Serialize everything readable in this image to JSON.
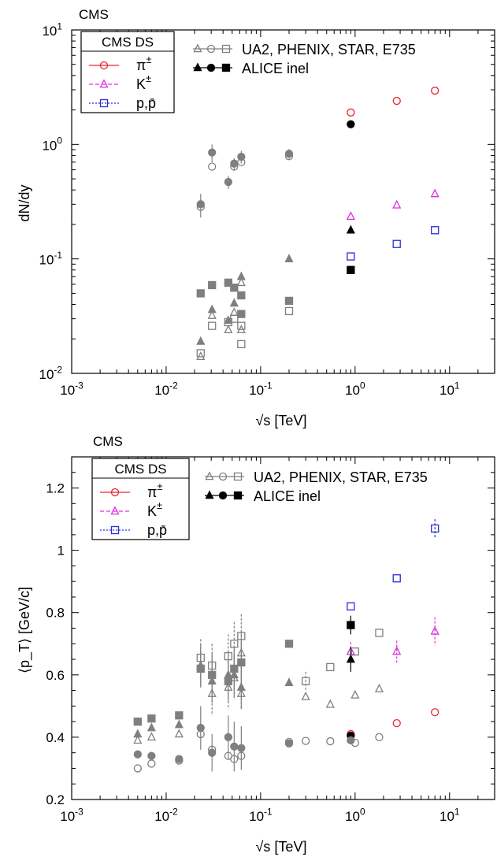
{
  "colors": {
    "pion": "#e8262d",
    "kaon": "#e02ee0",
    "proton": "#2a2adf",
    "other_exp": "#7f7f7f",
    "alice": "#000000"
  },
  "chart_data": [
    {
      "type": "scatter",
      "panel_label": "CMS",
      "xlabel": "√s [TeV]",
      "ylabel": "dN/dy",
      "xscale": "log",
      "yscale": "log",
      "xlim": [
        0.001,
        30
      ],
      "ylim": [
        0.01,
        10
      ],
      "x_ticks": [
        {
          "value": 0.001,
          "base": "10",
          "exp": "-3"
        },
        {
          "value": 0.01,
          "base": "10",
          "exp": "-2"
        },
        {
          "value": 0.1,
          "base": "10",
          "exp": "-1"
        },
        {
          "value": 1,
          "base": "10",
          "exp": "0"
        },
        {
          "value": 10,
          "base": "10",
          "exp": "1"
        }
      ],
      "y_ticks": [
        {
          "value": 0.01,
          "base": "10",
          "exp": "-2"
        },
        {
          "value": 0.1,
          "base": "10",
          "exp": "-1"
        },
        {
          "value": 1,
          "base": "10",
          "exp": "0"
        },
        {
          "value": 10,
          "base": "10",
          "exp": "1"
        }
      ],
      "legend": {
        "placement": "top-left",
        "title": "CMS DS",
        "entries": [
          {
            "label": "π",
            "sup": "±",
            "color": "pion",
            "marker": "circle",
            "dash": "solid"
          },
          {
            "label": "K",
            "sup": "±",
            "color": "kaon",
            "marker": "triangle",
            "dash": "dashed"
          },
          {
            "label": "p,p̄",
            "sup": "",
            "color": "proton",
            "marker": "square",
            "dash": "dotted"
          }
        ],
        "other_entries": [
          {
            "label": "UA2, PHENIX, STAR, E735",
            "style": "open"
          },
          {
            "label": "ALICE inel",
            "style": "filled"
          }
        ]
      },
      "series": [
        {
          "name": "π±",
          "color": "pion",
          "marker": "circle",
          "fill": "open",
          "points": [
            {
              "x": 0.9,
              "y": 1.9
            },
            {
              "x": 2.76,
              "y": 2.4
            },
            {
              "x": 7,
              "y": 2.95
            }
          ]
        },
        {
          "name": "K±",
          "color": "kaon",
          "marker": "triangle",
          "fill": "open",
          "points": [
            {
              "x": 0.9,
              "y": 0.235
            },
            {
              "x": 2.76,
              "y": 0.295
            },
            {
              "x": 7,
              "y": 0.37
            }
          ]
        },
        {
          "name": "p,p̄",
          "color": "proton",
          "marker": "square",
          "fill": "open",
          "points": [
            {
              "x": 0.9,
              "y": 0.105
            },
            {
              "x": 2.76,
              "y": 0.135
            },
            {
              "x": 7,
              "y": 0.178
            }
          ]
        },
        {
          "name": "ALICE inel",
          "color": "alice",
          "marker": "circle",
          "fill": "filled",
          "points": [
            {
              "x": 0.9,
              "y": 1.5
            }
          ]
        },
        {
          "name": "ALICE inel",
          "color": "alice",
          "marker": "triangle",
          "fill": "filled",
          "points": [
            {
              "x": 0.9,
              "y": 0.178
            }
          ]
        },
        {
          "name": "ALICE inel",
          "color": "alice",
          "marker": "square",
          "fill": "filled",
          "points": [
            {
              "x": 0.9,
              "y": 0.08
            }
          ]
        },
        {
          "name": "UA2, PHENIX, STAR, E735",
          "color": "other_exp",
          "marker": "circle",
          "fill": "filled",
          "points": [
            {
              "x": 0.0232,
              "y": 0.3,
              "err": 0.07
            },
            {
              "x": 0.0306,
              "y": 0.85,
              "err": 0.15
            },
            {
              "x": 0.0455,
              "y": 0.47,
              "err": 0.06
            },
            {
              "x": 0.0525,
              "y": 0.68,
              "err": 0.08
            },
            {
              "x": 0.0624,
              "y": 0.78,
              "err": 0.1
            },
            {
              "x": 0.2,
              "y": 0.83,
              "err": 0.08
            }
          ]
        },
        {
          "name": "UA2, PHENIX, STAR, E735",
          "color": "other_exp",
          "marker": "circle",
          "fill": "open",
          "points": [
            {
              "x": 0.0232,
              "y": 0.285
            },
            {
              "x": 0.0306,
              "y": 0.64
            },
            {
              "x": 0.0525,
              "y": 0.64
            },
            {
              "x": 0.0624,
              "y": 0.7
            },
            {
              "x": 0.2,
              "y": 0.79
            }
          ]
        },
        {
          "name": "UA2, PHENIX, STAR, E735",
          "color": "other_exp",
          "marker": "square",
          "fill": "filled",
          "points": [
            {
              "x": 0.0232,
              "y": 0.05
            },
            {
              "x": 0.0306,
              "y": 0.059
            },
            {
              "x": 0.0455,
              "y": 0.062
            },
            {
              "x": 0.0525,
              "y": 0.056
            },
            {
              "x": 0.0624,
              "y": 0.048
            },
            {
              "x": 0.0624,
              "y": 0.033
            },
            {
              "x": 0.2,
              "y": 0.043
            }
          ]
        },
        {
          "name": "UA2, PHENIX, STAR, E735",
          "color": "other_exp",
          "marker": "square",
          "fill": "open",
          "points": [
            {
              "x": 0.0232,
              "y": 0.015
            },
            {
              "x": 0.0306,
              "y": 0.026
            },
            {
              "x": 0.0455,
              "y": 0.028
            },
            {
              "x": 0.0525,
              "y": 0.03
            },
            {
              "x": 0.0624,
              "y": 0.026
            },
            {
              "x": 0.0624,
              "y": 0.018
            },
            {
              "x": 0.2,
              "y": 0.035
            }
          ]
        },
        {
          "name": "UA2, PHENIX, STAR, E735",
          "color": "other_exp",
          "marker": "triangle",
          "fill": "filled",
          "points": [
            {
              "x": 0.0232,
              "y": 0.019
            },
            {
              "x": 0.0306,
              "y": 0.036
            },
            {
              "x": 0.0455,
              "y": 0.029
            },
            {
              "x": 0.0525,
              "y": 0.041
            },
            {
              "x": 0.0624,
              "y": 0.07
            },
            {
              "x": 0.2,
              "y": 0.1
            }
          ]
        },
        {
          "name": "UA2, PHENIX, STAR, E735",
          "color": "other_exp",
          "marker": "triangle",
          "fill": "open",
          "points": [
            {
              "x": 0.0232,
              "y": 0.014
            },
            {
              "x": 0.0306,
              "y": 0.032
            },
            {
              "x": 0.0455,
              "y": 0.024
            },
            {
              "x": 0.0525,
              "y": 0.034
            },
            {
              "x": 0.0624,
              "y": 0.062
            },
            {
              "x": 0.0624,
              "y": 0.024
            }
          ]
        }
      ]
    },
    {
      "type": "scatter",
      "panel_label": "CMS",
      "xlabel": "√s [TeV]",
      "ylabel": "⟨p_T⟩ [GeV/c]",
      "xscale": "log",
      "yscale": "linear",
      "xlim": [
        0.001,
        30
      ],
      "ylim": [
        0.2,
        1.3
      ],
      "x_ticks": [
        {
          "value": 0.001,
          "base": "10",
          "exp": "-3"
        },
        {
          "value": 0.01,
          "base": "10",
          "exp": "-2"
        },
        {
          "value": 0.1,
          "base": "10",
          "exp": "-1"
        },
        {
          "value": 1,
          "base": "10",
          "exp": "0"
        },
        {
          "value": 10,
          "base": "10",
          "exp": "1"
        }
      ],
      "y_ticks": [
        {
          "value": 0.2,
          "label": "0.2"
        },
        {
          "value": 0.4,
          "label": "0.4"
        },
        {
          "value": 0.6,
          "label": "0.6"
        },
        {
          "value": 0.8,
          "label": "0.8"
        },
        {
          "value": 1.0,
          "label": "1"
        },
        {
          "value": 1.2,
          "label": "1.2"
        }
      ],
      "legend": {
        "placement": "top-left",
        "title": "CMS DS",
        "entries": [
          {
            "label": "π",
            "sup": "±",
            "color": "pion",
            "marker": "circle",
            "dash": "solid"
          },
          {
            "label": "K",
            "sup": "±",
            "color": "kaon",
            "marker": "triangle",
            "dash": "dashed"
          },
          {
            "label": "p,p̄",
            "sup": "",
            "color": "proton",
            "marker": "square",
            "dash": "dotted"
          }
        ],
        "other_entries": [
          {
            "label": "UA2, PHENIX, STAR, E735",
            "style": "open"
          },
          {
            "label": "ALICE inel",
            "style": "filled"
          }
        ]
      },
      "series": [
        {
          "name": "π±",
          "color": "pion",
          "marker": "circle",
          "fill": "open",
          "points": [
            {
              "x": 0.9,
              "y": 0.41
            },
            {
              "x": 2.76,
              "y": 0.445
            },
            {
              "x": 7,
              "y": 0.48
            }
          ]
        },
        {
          "name": "K±",
          "color": "kaon",
          "marker": "triangle",
          "fill": "open",
          "points": [
            {
              "x": 0.9,
              "y": 0.675,
              "err": 0.03
            },
            {
              "x": 2.76,
              "y": 0.675,
              "err": 0.035
            },
            {
              "x": 7,
              "y": 0.74,
              "err": 0.045
            }
          ]
        },
        {
          "name": "p,p̄",
          "color": "proton",
          "marker": "square",
          "fill": "open",
          "points": [
            {
              "x": 0.9,
              "y": 0.82
            },
            {
              "x": 2.76,
              "y": 0.91
            },
            {
              "x": 7,
              "y": 1.07,
              "err": 0.03
            }
          ]
        },
        {
          "name": "ALICE inel",
          "color": "alice",
          "marker": "circle",
          "fill": "filled",
          "points": [
            {
              "x": 0.9,
              "y": 0.405
            }
          ]
        },
        {
          "name": "ALICE inel",
          "color": "alice",
          "marker": "triangle",
          "fill": "filled",
          "points": [
            {
              "x": 0.9,
              "y": 0.65,
              "err": 0.04
            }
          ]
        },
        {
          "name": "ALICE inel",
          "color": "alice",
          "marker": "square",
          "fill": "filled",
          "points": [
            {
              "x": 0.9,
              "y": 0.76,
              "err": 0.03
            }
          ]
        },
        {
          "name": "UA2, PHENIX, STAR, E735",
          "color": "other_exp",
          "marker": "circle",
          "fill": "filled",
          "points": [
            {
              "x": 0.005,
              "y": 0.345
            },
            {
              "x": 0.007,
              "y": 0.34
            },
            {
              "x": 0.0137,
              "y": 0.33
            },
            {
              "x": 0.0232,
              "y": 0.43,
              "err": 0.07
            },
            {
              "x": 0.0306,
              "y": 0.35,
              "err": 0.06
            },
            {
              "x": 0.0455,
              "y": 0.4,
              "err": 0.07
            },
            {
              "x": 0.0525,
              "y": 0.37,
              "err": 0.08
            },
            {
              "x": 0.0624,
              "y": 0.365,
              "err": 0.07
            },
            {
              "x": 0.2,
              "y": 0.38
            },
            {
              "x": 0.9,
              "y": 0.39
            }
          ]
        },
        {
          "name": "UA2, PHENIX, STAR, E735",
          "color": "other_exp",
          "marker": "circle",
          "fill": "open",
          "points": [
            {
              "x": 0.005,
              "y": 0.3
            },
            {
              "x": 0.007,
              "y": 0.315
            },
            {
              "x": 0.0137,
              "y": 0.325
            },
            {
              "x": 0.0232,
              "y": 0.41
            },
            {
              "x": 0.0306,
              "y": 0.36
            },
            {
              "x": 0.0455,
              "y": 0.34
            },
            {
              "x": 0.0525,
              "y": 0.33
            },
            {
              "x": 0.0624,
              "y": 0.34
            },
            {
              "x": 0.2,
              "y": 0.385
            },
            {
              "x": 0.3,
              "y": 0.388
            },
            {
              "x": 0.546,
              "y": 0.387
            },
            {
              "x": 1.0,
              "y": 0.382
            },
            {
              "x": 1.8,
              "y": 0.4
            }
          ]
        },
        {
          "name": "UA2, PHENIX, STAR, E735",
          "color": "other_exp",
          "marker": "square",
          "fill": "filled",
          "points": [
            {
              "x": 0.005,
              "y": 0.45
            },
            {
              "x": 0.007,
              "y": 0.46
            },
            {
              "x": 0.0137,
              "y": 0.47
            },
            {
              "x": 0.0232,
              "y": 0.62,
              "err": 0.06
            },
            {
              "x": 0.0306,
              "y": 0.6,
              "err": 0.07
            },
            {
              "x": 0.0455,
              "y": 0.58,
              "err": 0.07
            },
            {
              "x": 0.0525,
              "y": 0.62,
              "err": 0.07
            },
            {
              "x": 0.0624,
              "y": 0.64,
              "err": 0.07
            },
            {
              "x": 0.2,
              "y": 0.7
            }
          ]
        },
        {
          "name": "UA2, PHENIX, STAR, E735",
          "color": "other_exp",
          "marker": "square",
          "fill": "open",
          "points": [
            {
              "x": 0.0232,
              "y": 0.655,
              "err": 0.06
            },
            {
              "x": 0.0306,
              "y": 0.63,
              "err": 0.07
            },
            {
              "x": 0.0455,
              "y": 0.66,
              "err": 0.07
            },
            {
              "x": 0.0525,
              "y": 0.7,
              "err": 0.07
            },
            {
              "x": 0.0624,
              "y": 0.725,
              "err": 0.07
            },
            {
              "x": 0.3,
              "y": 0.58,
              "err": 0.03
            },
            {
              "x": 0.546,
              "y": 0.625
            },
            {
              "x": 1.0,
              "y": 0.675
            },
            {
              "x": 1.8,
              "y": 0.735
            }
          ]
        },
        {
          "name": "UA2, PHENIX, STAR, E735",
          "color": "other_exp",
          "marker": "triangle",
          "fill": "filled",
          "points": [
            {
              "x": 0.005,
              "y": 0.41
            },
            {
              "x": 0.007,
              "y": 0.43
            },
            {
              "x": 0.0137,
              "y": 0.44
            },
            {
              "x": 0.0232,
              "y": 0.63,
              "err": 0.07
            },
            {
              "x": 0.0306,
              "y": 0.58,
              "err": 0.07
            },
            {
              "x": 0.0455,
              "y": 0.6,
              "err": 0.07
            },
            {
              "x": 0.0525,
              "y": 0.6,
              "err": 0.07
            },
            {
              "x": 0.0624,
              "y": 0.56,
              "err": 0.07
            },
            {
              "x": 0.2,
              "y": 0.575
            }
          ]
        },
        {
          "name": "UA2, PHENIX, STAR, E735",
          "color": "other_exp",
          "marker": "triangle",
          "fill": "open",
          "points": [
            {
              "x": 0.005,
              "y": 0.39
            },
            {
              "x": 0.007,
              "y": 0.4
            },
            {
              "x": 0.0137,
              "y": 0.41
            },
            {
              "x": 0.0306,
              "y": 0.54,
              "err": 0.07
            },
            {
              "x": 0.0455,
              "y": 0.56,
              "err": 0.07
            },
            {
              "x": 0.0525,
              "y": 0.59,
              "err": 0.07
            },
            {
              "x": 0.0624,
              "y": 0.67,
              "err": 0.07
            },
            {
              "x": 0.0624,
              "y": 0.54,
              "err": 0.05
            },
            {
              "x": 0.3,
              "y": 0.53
            },
            {
              "x": 0.546,
              "y": 0.505
            },
            {
              "x": 1.0,
              "y": 0.535
            },
            {
              "x": 1.8,
              "y": 0.555
            }
          ]
        }
      ]
    }
  ]
}
